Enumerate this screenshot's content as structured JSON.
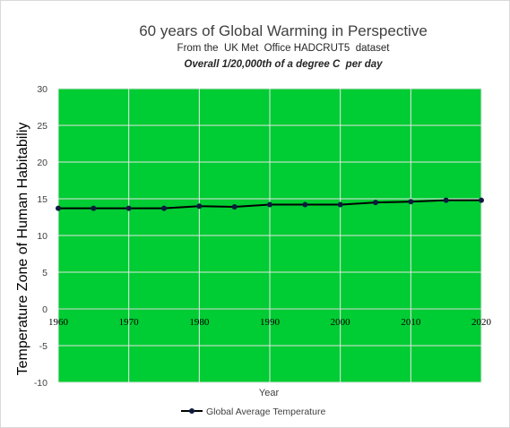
{
  "chart_data": {
    "type": "line",
    "title": "60 years of Global Warming in Perspective",
    "subtitle": "From the  UK Met  Office HADCRUT5  dataset",
    "subtitle2": "Overall 1/20,000th of a degree C  per day",
    "xlabel": "Year",
    "ylabel": "Temperature Zone of Human Habitabiliy",
    "x": [
      1960,
      1965,
      1970,
      1975,
      1980,
      1985,
      1990,
      1995,
      2000,
      2005,
      2010,
      2015,
      2020
    ],
    "series": [
      {
        "name": "Global Average Temperature",
        "values": [
          13.7,
          13.7,
          13.7,
          13.7,
          14.0,
          13.9,
          14.2,
          14.2,
          14.2,
          14.5,
          14.6,
          14.8,
          14.8
        ]
      }
    ],
    "xlim": [
      1960,
      2020
    ],
    "ylim": [
      -10,
      30
    ],
    "xticks": [
      "1960",
      "1970",
      "1980",
      "1990",
      "2000",
      "2010",
      "2020"
    ],
    "yticks": [
      "-10",
      "-5",
      "0",
      "5",
      "10",
      "15",
      "20",
      "25",
      "30"
    ],
    "grid": true,
    "legend_position": "bottom",
    "colors": {
      "plot_background": "#00cc33",
      "gridline": "#e6e6e6",
      "line": "#000000",
      "marker": "#0d1a40"
    }
  }
}
